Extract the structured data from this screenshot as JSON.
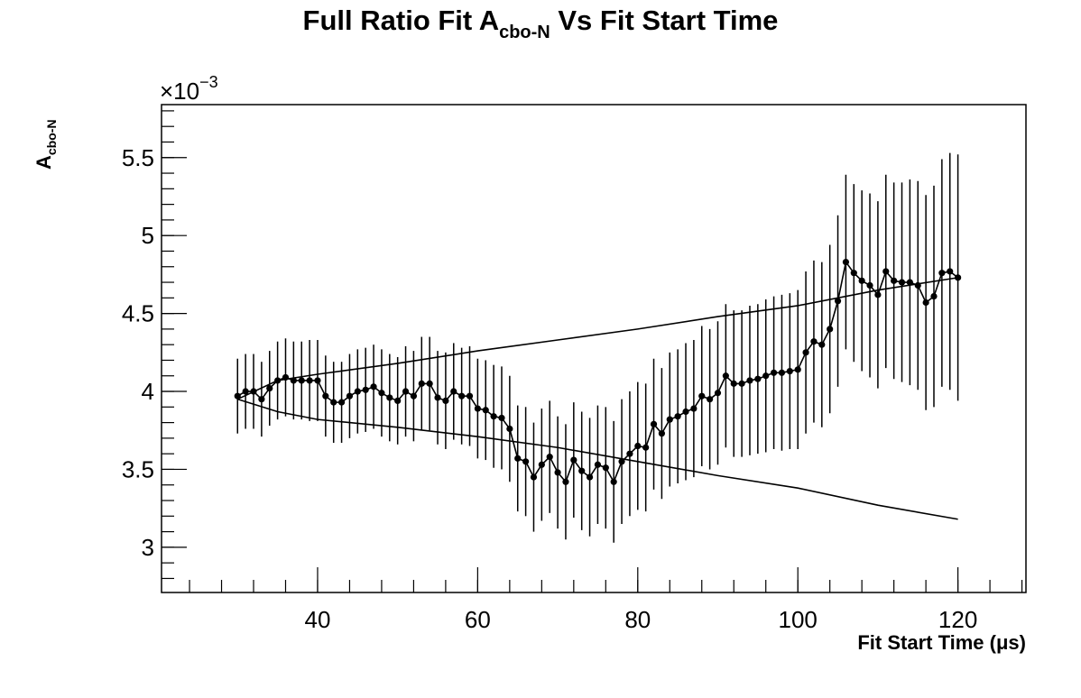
{
  "chart_data": {
    "type": "scatter",
    "title": {
      "main_prefix": "Full Ratio Fit A",
      "subscript": "cbo-N",
      "main_suffix": " Vs Fit Start Time"
    },
    "xlabel": "Fit Start Time (μs)",
    "ylabel": {
      "main": "A",
      "subscript": "cbo-N"
    },
    "y_multiplier": {
      "base": "×10",
      "exponent": "−3"
    },
    "xlim": [
      20.5,
      128.5
    ],
    "ylim": [
      2.71,
      5.84
    ],
    "x_ticks": [
      {
        "value": 40,
        "label": "40"
      },
      {
        "value": 60,
        "label": "60"
      },
      {
        "value": 80,
        "label": "80"
      },
      {
        "value": 100,
        "label": "100"
      },
      {
        "value": 120,
        "label": "120"
      }
    ],
    "y_ticks": [
      {
        "value": 3.0,
        "label": "3"
      },
      {
        "value": 3.5,
        "label": "3.5"
      },
      {
        "value": 4.0,
        "label": "4"
      },
      {
        "value": 4.5,
        "label": "4.5"
      },
      {
        "value": 5.0,
        "label": "5"
      },
      {
        "value": 5.5,
        "label": "5.5"
      }
    ],
    "x_minor_step": 4,
    "y_minor_step": 0.1,
    "grid": false,
    "legend": "none",
    "series": [
      {
        "style": "points-with-errorbars",
        "x": [
          30,
          31,
          32,
          33,
          34,
          35,
          36,
          37,
          38,
          39,
          40,
          41,
          42,
          43,
          44,
          45,
          46,
          47,
          48,
          49,
          50,
          51,
          52,
          53,
          54,
          55,
          56,
          57,
          58,
          59,
          60,
          61,
          62,
          63,
          64,
          65,
          66,
          67,
          68,
          69,
          70,
          71,
          72,
          73,
          74,
          75,
          76,
          77,
          78,
          79,
          80,
          81,
          82,
          83,
          84,
          85,
          86,
          87,
          88,
          89,
          90,
          91,
          92,
          93,
          94,
          95,
          96,
          97,
          98,
          99,
          100,
          101,
          102,
          103,
          104,
          105,
          106,
          107,
          108,
          109,
          110,
          111,
          112,
          113,
          114,
          115,
          116,
          117,
          118,
          119,
          120
        ],
        "y": [
          3.97,
          4.0,
          4.0,
          3.95,
          4.02,
          4.07,
          4.09,
          4.07,
          4.07,
          4.07,
          4.07,
          3.97,
          3.93,
          3.93,
          3.97,
          4.0,
          4.01,
          4.03,
          3.99,
          3.96,
          3.94,
          4.0,
          3.97,
          4.05,
          4.05,
          3.96,
          3.94,
          4.0,
          3.97,
          3.97,
          3.89,
          3.88,
          3.84,
          3.83,
          3.76,
          3.57,
          3.55,
          3.45,
          3.53,
          3.58,
          3.48,
          3.42,
          3.56,
          3.49,
          3.45,
          3.53,
          3.51,
          3.42,
          3.55,
          3.6,
          3.65,
          3.64,
          3.79,
          3.73,
          3.82,
          3.84,
          3.87,
          3.89,
          3.97,
          3.95,
          3.99,
          4.1,
          4.05,
          4.05,
          4.07,
          4.08,
          4.1,
          4.12,
          4.12,
          4.13,
          4.14,
          4.25,
          4.32,
          4.3,
          4.4,
          4.58,
          4.83,
          4.76,
          4.71,
          4.68,
          4.62,
          4.77,
          4.71,
          4.7,
          4.7,
          4.68,
          4.57,
          4.61,
          4.76,
          4.77,
          4.73
        ],
        "err": [
          0.24,
          0.24,
          0.24,
          0.24,
          0.24,
          0.25,
          0.25,
          0.25,
          0.25,
          0.26,
          0.26,
          0.26,
          0.26,
          0.26,
          0.27,
          0.27,
          0.27,
          0.27,
          0.28,
          0.28,
          0.28,
          0.29,
          0.29,
          0.3,
          0.3,
          0.3,
          0.31,
          0.31,
          0.31,
          0.32,
          0.32,
          0.32,
          0.33,
          0.33,
          0.34,
          0.34,
          0.35,
          0.35,
          0.36,
          0.36,
          0.36,
          0.37,
          0.37,
          0.38,
          0.38,
          0.38,
          0.39,
          0.39,
          0.4,
          0.4,
          0.41,
          0.41,
          0.42,
          0.42,
          0.43,
          0.43,
          0.44,
          0.44,
          0.45,
          0.45,
          0.46,
          0.46,
          0.47,
          0.47,
          0.48,
          0.48,
          0.49,
          0.49,
          0.5,
          0.5,
          0.51,
          0.52,
          0.52,
          0.53,
          0.54,
          0.55,
          0.56,
          0.57,
          0.58,
          0.59,
          0.6,
          0.62,
          0.63,
          0.64,
          0.66,
          0.67,
          0.69,
          0.71,
          0.73,
          0.76,
          0.79
        ]
      },
      {
        "style": "line",
        "x": [
          30,
          35,
          40,
          50,
          60,
          70,
          80,
          90,
          100,
          110,
          120
        ],
        "y": [
          3.95,
          4.07,
          4.11,
          4.18,
          4.26,
          4.33,
          4.4,
          4.48,
          4.55,
          4.65,
          4.73
        ]
      },
      {
        "style": "line",
        "x": [
          30,
          35,
          40,
          50,
          60,
          70,
          80,
          90,
          100,
          110,
          120
        ],
        "y": [
          3.95,
          3.87,
          3.82,
          3.77,
          3.71,
          3.64,
          3.55,
          3.46,
          3.38,
          3.27,
          3.18
        ]
      }
    ]
  }
}
